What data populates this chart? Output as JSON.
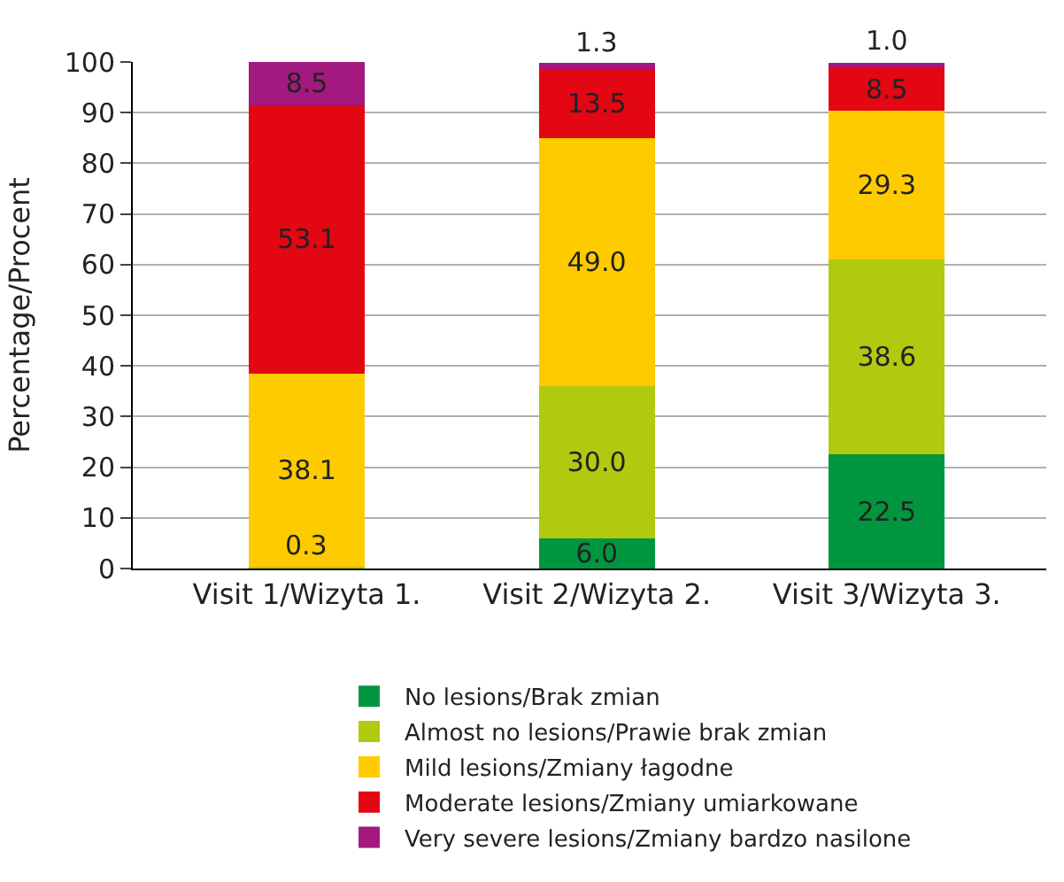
{
  "chart_data": {
    "type": "bar",
    "stacked": true,
    "ylabel": "Percentage/Procent",
    "categories": [
      "Visit 1/Wizyta 1.",
      "Visit 2/Wizyta 2.",
      "Visit 3/Wizyta 3."
    ],
    "series": [
      {
        "name": "No lesions/Brak zmian",
        "color": "#00963f",
        "values": [
          0,
          6.0,
          22.5
        ],
        "value_labels": [
          null,
          "6.0",
          "22.5"
        ]
      },
      {
        "name": "Almost no lesions/Prawie brak zmian",
        "color": "#b1c90f",
        "values": [
          0.3,
          30.0,
          38.6
        ],
        "value_labels": [
          "0.3",
          "30.0",
          "38.6"
        ]
      },
      {
        "name": "Mild lesions/Zmiany łagodne",
        "color": "#fecb00",
        "values": [
          38.1,
          49.0,
          29.3
        ],
        "value_labels": [
          "38.1",
          "49.0",
          "29.3"
        ]
      },
      {
        "name": "Moderate lesions/Zmiany umiarkowane",
        "color": "#e30613",
        "values": [
          53.1,
          13.5,
          8.5
        ],
        "value_labels": [
          "53.1",
          "13.5",
          "8.5"
        ]
      },
      {
        "name": "Very severe lesions/Zmiany bardzo nasilone",
        "color": "#a3197f",
        "values": [
          8.5,
          1.3,
          1.0
        ],
        "value_labels": [
          "8.5",
          "1.3",
          "1.0"
        ]
      }
    ],
    "ylim": [
      0,
      100
    ],
    "yticks": [
      0,
      10,
      20,
      30,
      40,
      50,
      60,
      70,
      80,
      90,
      100
    ],
    "grid": "y",
    "legend": "bottom"
  }
}
